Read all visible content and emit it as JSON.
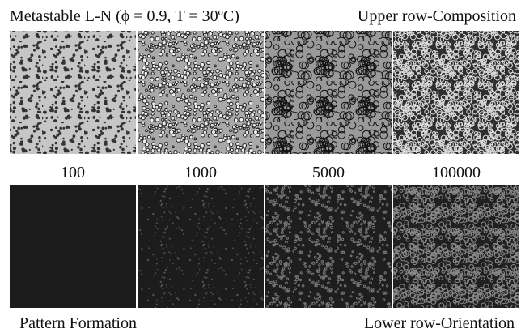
{
  "header": {
    "title": "Metastable L-N (ϕ = 0.9, T = 30ºC)",
    "subtitle": "Upper row-Composition"
  },
  "time_labels": [
    "100",
    "1000",
    "5000",
    "100000"
  ],
  "footer": {
    "left": "Pattern Formation",
    "right": "Lower row-Orientation"
  }
}
